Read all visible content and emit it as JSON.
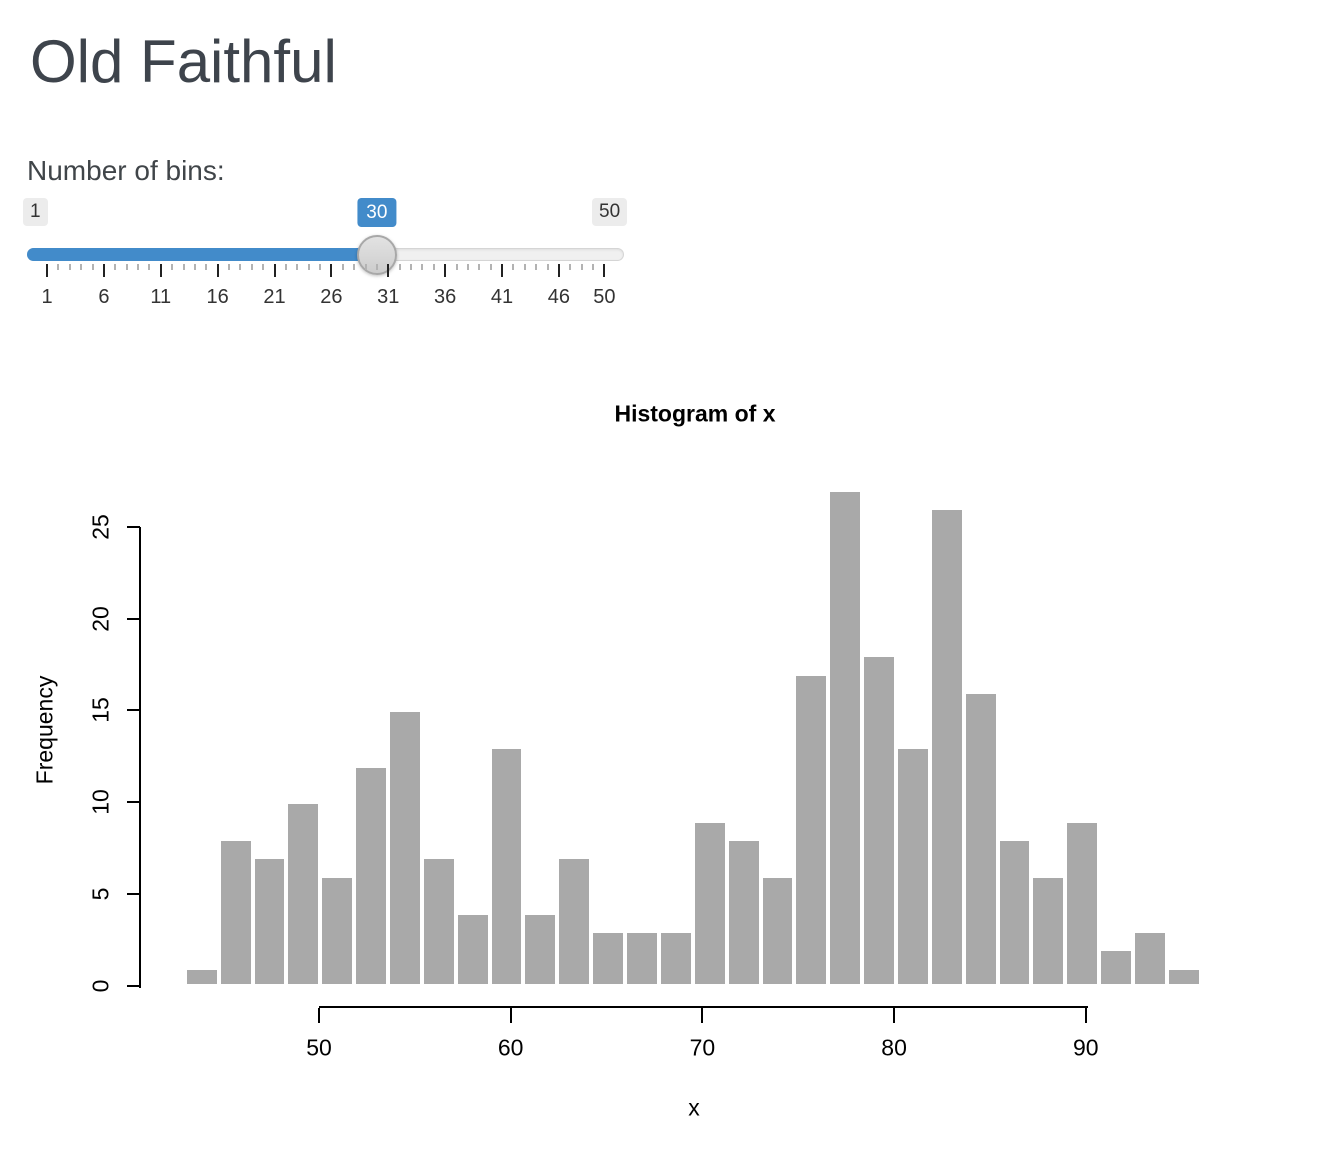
{
  "app": {
    "title": "Old Faithful",
    "text_color": "#3e444c",
    "accent_color": "#428bca"
  },
  "slider": {
    "label": "Number of bins:",
    "min": 1,
    "max": 50,
    "value": 30,
    "min_label": "1",
    "max_label": "50",
    "value_label": "30",
    "major_ticks": [
      1,
      6,
      11,
      16,
      21,
      26,
      31,
      36,
      41,
      46,
      50
    ],
    "minor_tick_step": 1,
    "track_color": "#f0f0f0",
    "fill_color": "#428bca",
    "handle_color": "#d5d5d5"
  },
  "chart_data": {
    "type": "bar",
    "subtype": "histogram",
    "title": "Histogram of x",
    "xlabel": "x",
    "ylabel": "Frequency",
    "bins": {
      "start": 43,
      "end": 96,
      "count": 30,
      "width": 1.7667
    },
    "values": [
      1,
      8,
      7,
      10,
      6,
      12,
      15,
      7,
      4,
      13,
      4,
      7,
      3,
      3,
      3,
      9,
      8,
      6,
      17,
      27,
      18,
      13,
      26,
      16,
      8,
      6,
      9,
      2,
      3,
      1
    ],
    "x_ticks": [
      50,
      60,
      70,
      80,
      90
    ],
    "y_ticks": [
      0,
      5,
      10,
      15,
      20,
      25
    ],
    "xlim": [
      43,
      96
    ],
    "ylim": [
      0,
      27
    ],
    "grid": false,
    "legend": null,
    "bar_color": "#a9a9a9",
    "bar_border": "#ffffff"
  }
}
